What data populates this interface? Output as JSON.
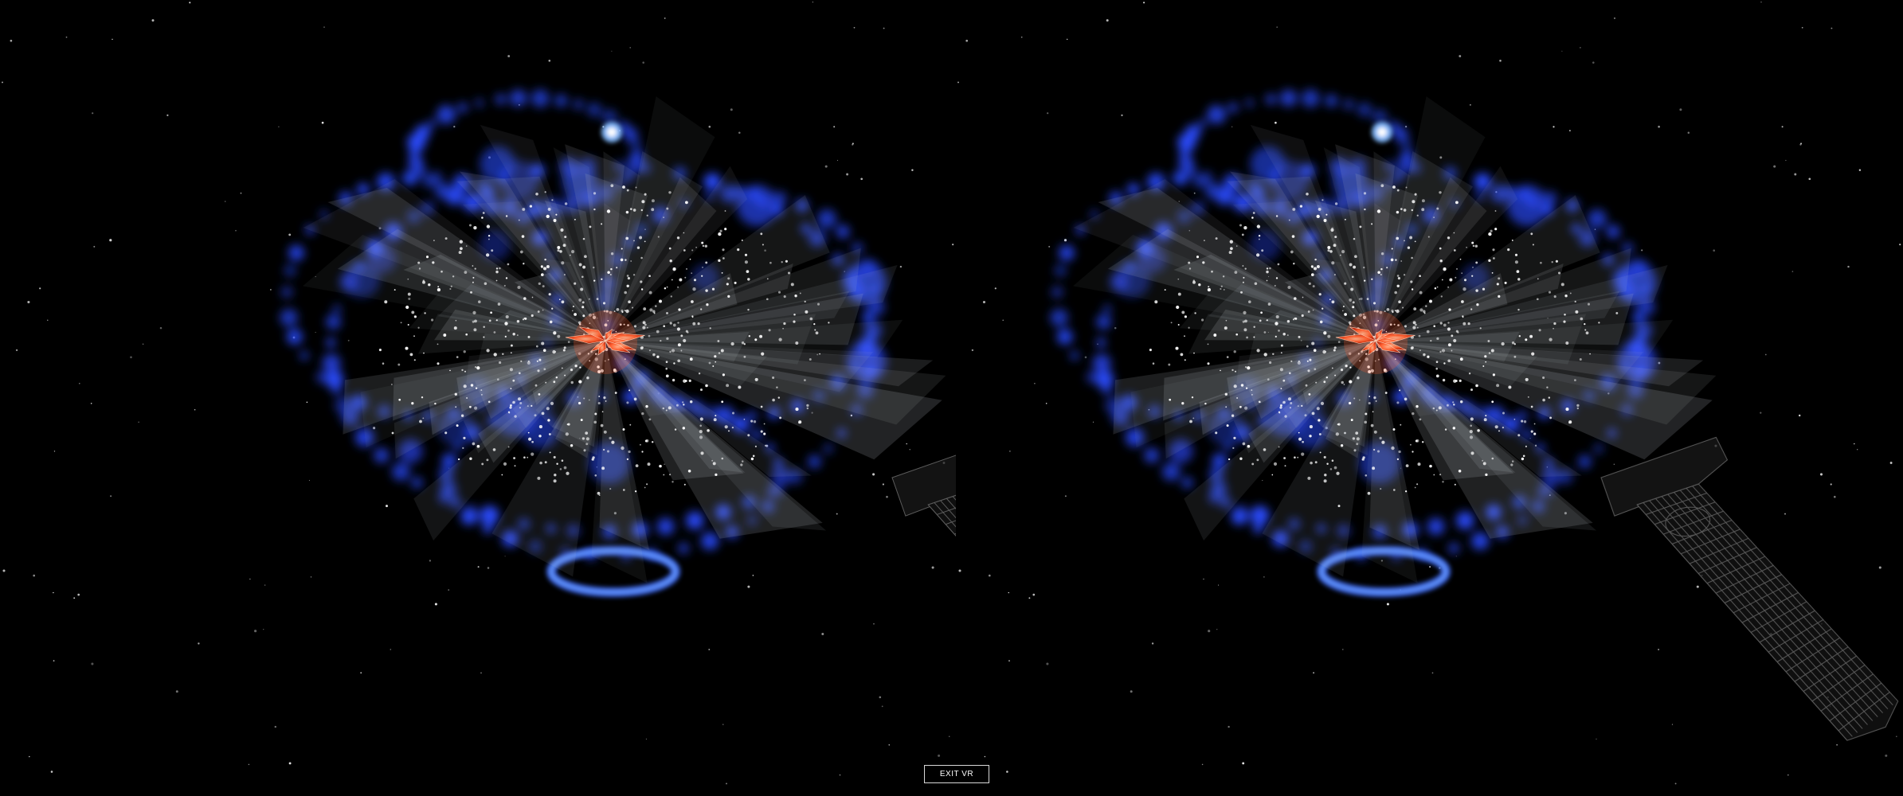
{
  "vr": {
    "mode": "stereo",
    "exit_label": "EXIT VR"
  },
  "scene": {
    "background_color": "#000000",
    "ring_color": "#2a4bff",
    "ring_highlight_color": "#7fb8ff",
    "core_color": "#ff5a2a",
    "particle_color": "#ffffff",
    "controller_icon": "vr-controller-icon"
  }
}
